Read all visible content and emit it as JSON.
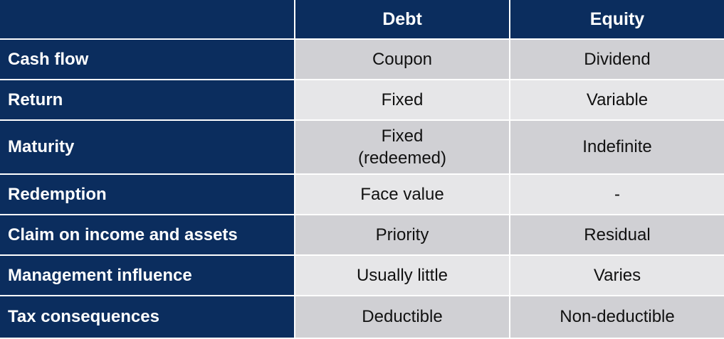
{
  "table": {
    "columns": [
      "",
      "Debt",
      "Equity"
    ],
    "rows": [
      {
        "label": "Cash flow",
        "debt": "Coupon",
        "equity": "Dividend"
      },
      {
        "label": "Return",
        "debt": "Fixed",
        "equity": "Variable"
      },
      {
        "label": "Maturity",
        "debt_line1": "Fixed",
        "debt_line2": "(redeemed)",
        "equity": "Indefinite"
      },
      {
        "label": "Redemption",
        "debt": "Face value",
        "equity": "-"
      },
      {
        "label": "Claim on income and assets",
        "debt": "Priority",
        "equity": "Residual"
      },
      {
        "label": "Management influence",
        "debt": "Usually little",
        "equity": "Varies"
      },
      {
        "label": "Tax consequences",
        "debt": "Deductible",
        "equity": "Non-deductible"
      }
    ]
  },
  "colors": {
    "header_bg": "#0b2d5e",
    "row_dark": "#d0d0d4",
    "row_light": "#e6e6e8",
    "header_text": "#ffffff"
  }
}
